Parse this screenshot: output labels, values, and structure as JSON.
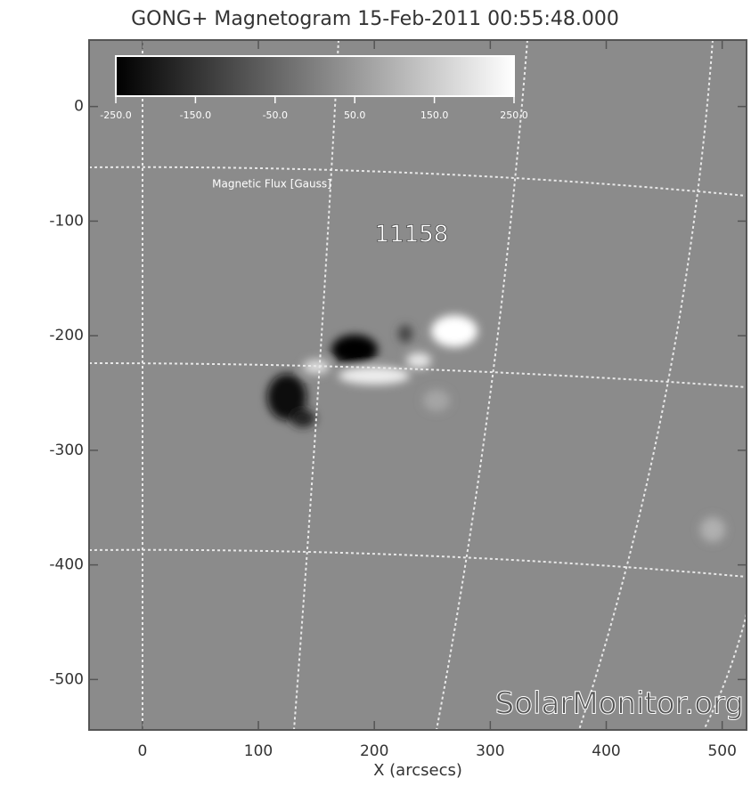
{
  "chart_data": {
    "type": "image",
    "title": "GONG+ Magnetogram 15-Feb-2011 00:55:48.000",
    "xlabel": "X (arcsecs)",
    "xlim": [
      -46,
      521
    ],
    "ylim": [
      -544,
      58
    ],
    "xticks": [
      0,
      100,
      200,
      300,
      400,
      500
    ],
    "yticks": [
      0,
      -100,
      -200,
      -300,
      -400,
      -500
    ],
    "colorbar": {
      "label": "Magnetic Flux [Gauss]",
      "lim": [
        -250,
        250
      ],
      "ticks": [
        {
          "value": -250,
          "label": "-250.0"
        },
        {
          "value": -150,
          "label": "-150.0"
        },
        {
          "value": -50,
          "label": "-50.0"
        },
        {
          "value": 50,
          "label": "50.0"
        },
        {
          "value": 150,
          "label": "150.0"
        },
        {
          "value": 250,
          "label": "250.0"
        }
      ]
    },
    "annotation": "11158",
    "watermark": "SolarMonitor.org"
  }
}
